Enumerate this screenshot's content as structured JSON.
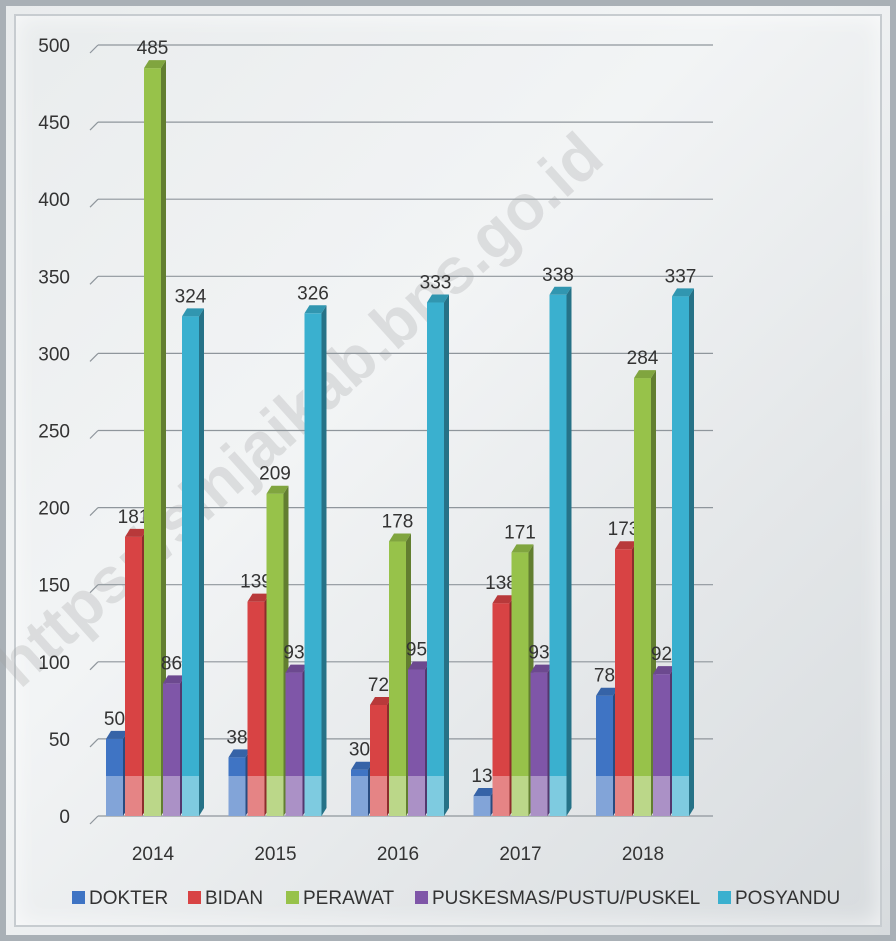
{
  "chart_data": {
    "type": "bar",
    "categories": [
      "2014",
      "2015",
      "2016",
      "2017",
      "2018"
    ],
    "series": [
      {
        "name": "DOKTER",
        "color": "#3f74c4",
        "values": [
          50,
          38,
          30,
          13,
          78
        ]
      },
      {
        "name": "BIDAN",
        "color": "#d84344",
        "values": [
          181,
          139,
          72,
          138,
          173
        ]
      },
      {
        "name": "PERAWAT",
        "color": "#97c24a",
        "values": [
          485,
          209,
          178,
          171,
          284
        ]
      },
      {
        "name": "PUSKESMAS/PUSTU/PUSKEL",
        "color": "#7f56a8",
        "values": [
          86,
          93,
          95,
          93,
          92
        ]
      },
      {
        "name": "POSYANDU",
        "color": "#3ab0cf",
        "values": [
          324,
          326,
          333,
          338,
          337
        ]
      }
    ],
    "ylim": [
      0,
      500
    ],
    "yticks": [
      "0",
      "50",
      "100",
      "150",
      "200",
      "250",
      "300",
      "350",
      "400",
      "450",
      "500"
    ],
    "grid": true,
    "legend_position": "bottom",
    "watermark": "https://sinjaikab.bps.go.id"
  }
}
